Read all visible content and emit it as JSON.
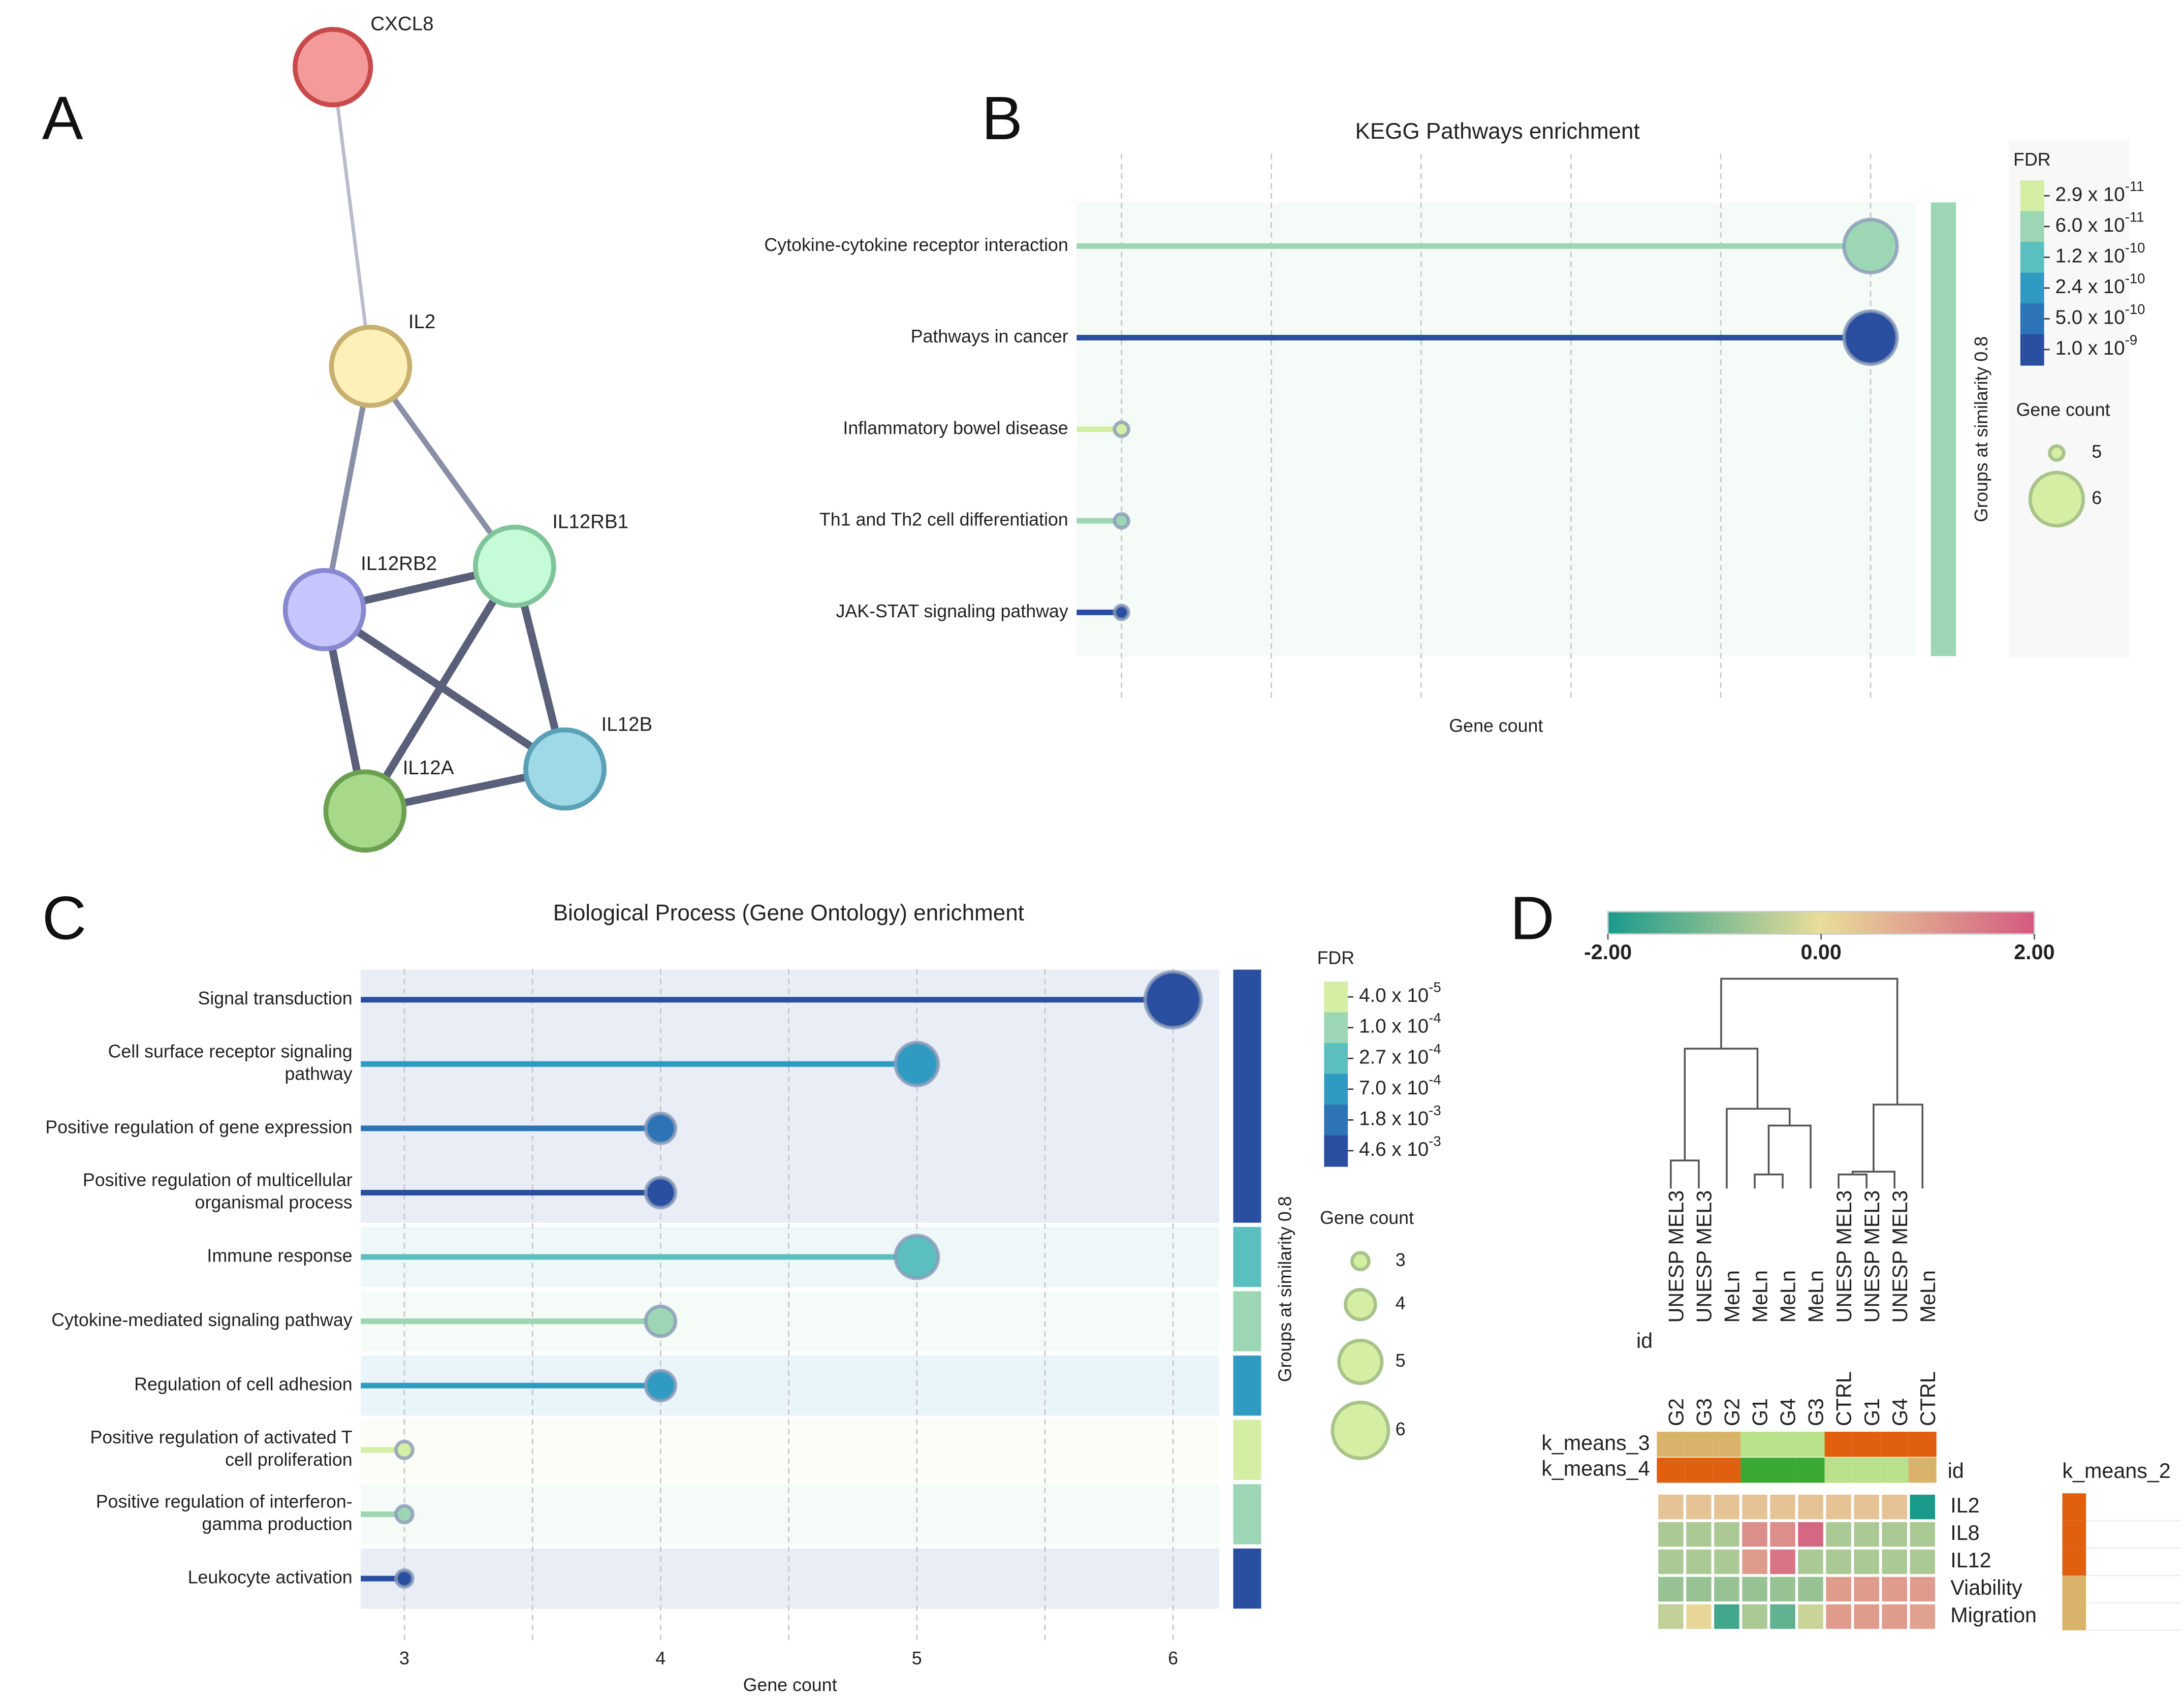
{
  "panel_labels": [
    "A",
    "B",
    "C",
    "D"
  ],
  "network": {
    "nodes": [
      {
        "label": "CXCL8",
        "color": "#f59a9a"
      },
      {
        "label": "IL2",
        "color": "#fdf0b8"
      },
      {
        "label": "IL12RB1",
        "color": "#c6fbd8"
      },
      {
        "label": "IL12RB2",
        "color": "#c6c6fd"
      },
      {
        "label": "IL12B",
        "color": "#9fd8e6"
      },
      {
        "label": "IL12A",
        "color": "#a8d88a"
      }
    ]
  },
  "chart_data": [
    {
      "type": "lollipop",
      "title": "KEGG Pathways enrichment",
      "x_label": "Gene count",
      "group_label": "Groups at similarity 0.8",
      "categories": [
        "Cytokine-cytokine receptor interaction",
        "Pathways in cancer",
        "Inflammatory bowel disease",
        "Th1 and Th2 cell differentiation",
        "JAK-STAT signaling pathway"
      ],
      "values": [
        6,
        6,
        5,
        5,
        5
      ],
      "colors": [
        "#9dd6b4",
        "#2a4fa0",
        "#d4efa4",
        "#9dd6b4",
        "#2a4fa0"
      ],
      "group": [
        0,
        0,
        0,
        0,
        0
      ],
      "group_colors": [
        "#9dd6b4"
      ],
      "xlim": [
        4.94,
        6.06
      ],
      "xticks": [],
      "xgrid": [
        5,
        5.2,
        5.4,
        5.6,
        5.8,
        6
      ],
      "fdr_title": "FDR",
      "fdr_legend": [
        {
          "label": "2.9 x 10",
          "exponent": "-11",
          "color": "#d4efa4"
        },
        {
          "label": "6.0 x 10",
          "exponent": "-11",
          "color": "#9dd6b4"
        },
        {
          "label": "1.2 x 10",
          "exponent": "-10",
          "color": "#5bbfc0"
        },
        {
          "label": "2.4 x 10",
          "exponent": "-10",
          "color": "#2f9bc2"
        },
        {
          "label": "5.0 x 10",
          "exponent": "-10",
          "color": "#2c74b5"
        },
        {
          "label": "1.0 x 10",
          "exponent": "-9",
          "color": "#2a4fa0"
        }
      ],
      "size_title": "Gene count",
      "size_legend": [
        5,
        6
      ]
    },
    {
      "type": "lollipop",
      "title": "Biological Process (Gene Ontology) enrichment",
      "x_label": "Gene count",
      "group_label": "Groups at similarity 0.8",
      "categories": [
        "Signal transduction",
        "Cell surface receptor signaling\npathway",
        "Positive regulation of gene expression",
        "Positive regulation of multicellular\norganismal process",
        "Immune response",
        "Cytokine-mediated signaling pathway",
        "Regulation of cell adhesion",
        "Positive regulation of activated T\ncell proliferation",
        "Positive regulation of interferon-\ngamma production",
        "Leukocyte activation"
      ],
      "values": [
        6,
        5,
        4,
        4,
        5,
        4,
        4,
        3,
        3,
        3
      ],
      "colors": [
        "#2a4fa0",
        "#2f9bc2",
        "#2c74b5",
        "#2a4fa0",
        "#5bbfc0",
        "#9dd6b4",
        "#2f9bc2",
        "#d4efa4",
        "#9dd6b4",
        "#2a4fa0"
      ],
      "group": [
        0,
        0,
        0,
        0,
        1,
        2,
        3,
        4,
        5,
        6
      ],
      "group_colors": [
        "#2a4fa0",
        "#5bbfc0",
        "#9dd6b4",
        "#2f9bc2",
        "#d4efa4",
        "#9dd6b4",
        "#2a4fa0"
      ],
      "xlim": [
        2.83,
        6.18
      ],
      "xticks": [
        3,
        4,
        5,
        6
      ],
      "xgrid": [
        3.5,
        4.5,
        5.5
      ],
      "fdr_title": "FDR",
      "fdr_legend": [
        {
          "label": "4.0 x 10",
          "exponent": "-5",
          "color": "#d4efa4"
        },
        {
          "label": "1.0 x 10",
          "exponent": "-4",
          "color": "#9dd6b4"
        },
        {
          "label": "2.7 x 10",
          "exponent": "-4",
          "color": "#5bbfc0"
        },
        {
          "label": "7.0 x 10",
          "exponent": "-4",
          "color": "#2f9bc2"
        },
        {
          "label": "1.8 x 10",
          "exponent": "-3",
          "color": "#2c74b5"
        },
        {
          "label": "4.6 x 10",
          "exponent": "-3",
          "color": "#2a4fa0"
        }
      ],
      "size_title": "Gene count",
      "size_legend": [
        3,
        4,
        5,
        6
      ]
    },
    {
      "type": "heatmap",
      "col_ids": [
        "UNESP MEL3",
        "UNESP MEL3",
        "MeLn",
        "MeLn",
        "MeLn",
        "MeLn",
        "UNESP MEL3",
        "UNESP MEL3",
        "UNESP MEL3",
        "MeLn"
      ],
      "col_groups": [
        "G2",
        "G3",
        "G2",
        "G1",
        "G4",
        "G3",
        "CTRL",
        "G1",
        "G4",
        "CTRL"
      ],
      "id_label": "id",
      "rows": [
        "IL2",
        "IL8",
        "IL12",
        "Viability",
        "Migration"
      ],
      "values": [
        [
          0.4,
          0.4,
          0.4,
          0.4,
          0.4,
          0.4,
          0.4,
          0.4,
          0.4,
          -2
        ],
        [
          -0.6,
          -0.6,
          -0.6,
          1.2,
          1.2,
          1.8,
          -0.6,
          -0.6,
          -0.6,
          -0.6
        ],
        [
          -0.6,
          -0.6,
          -0.6,
          1.0,
          1.6,
          -0.6,
          -0.6,
          -0.6,
          -0.6,
          -0.6
        ],
        [
          -0.8,
          -0.8,
          -0.8,
          -0.8,
          -0.8,
          -0.8,
          1.0,
          1.0,
          1.0,
          1.0
        ],
        [
          -0.4,
          0.1,
          -1.6,
          -0.6,
          -1.3,
          -0.3,
          1.0,
          1.0,
          1.0,
          0.9
        ]
      ],
      "vlim": [
        -2,
        2
      ],
      "colorscale": [
        "#1a9a8a",
        "#e9dd9a",
        "#d45a80"
      ],
      "colorbar_ticks": [
        {
          "value": -2,
          "label": "-2.00"
        },
        {
          "value": 0,
          "label": "0.00"
        },
        {
          "value": 2,
          "label": "2.00"
        }
      ],
      "annotations": [
        {
          "name": "k_means_3",
          "colors": [
            "#d9b36a",
            "#d9b36a",
            "#d9b36a",
            "#b9e08a",
            "#b9e08a",
            "#b9e08a",
            "#e06010",
            "#e06010",
            "#e06010",
            "#e06010"
          ]
        },
        {
          "name": "k_means_4",
          "colors": [
            "#e06010",
            "#e06010",
            "#e06010",
            "#3aaa35",
            "#3aaa35",
            "#3aaa35",
            "#b9e08a",
            "#b9e08a",
            "#b9e08a",
            "#d9b36a"
          ]
        }
      ],
      "legend_title": "id",
      "row_annotation": {
        "name": "k_means_2",
        "colors": [
          "#e06010",
          "#e06010",
          "#e06010",
          "#d9b36a",
          "#d9b36a"
        ]
      }
    }
  ]
}
